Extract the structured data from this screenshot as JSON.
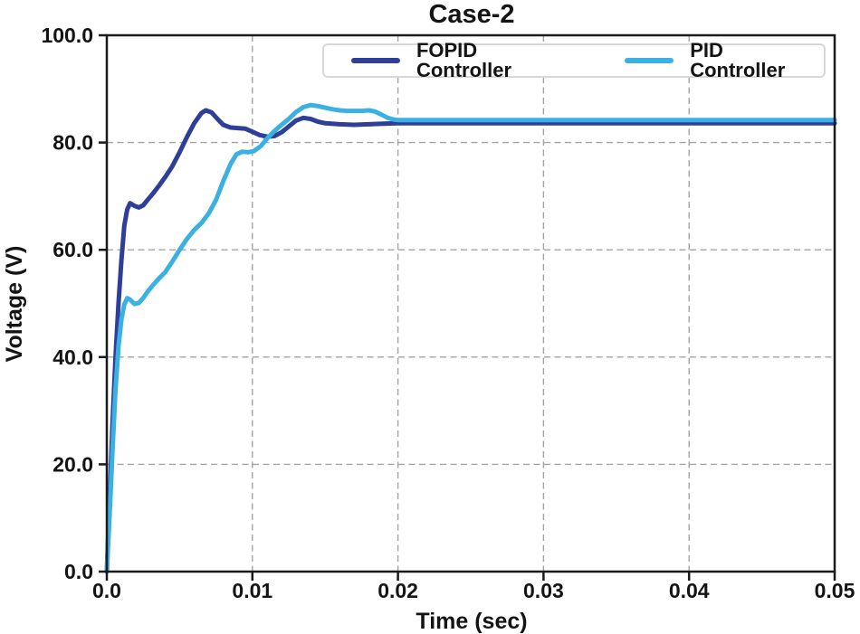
{
  "chart_data": {
    "type": "line",
    "title": "Case-2",
    "xlabel": "Time (sec)",
    "ylabel": "Voltage (V)",
    "xlim": [
      0,
      0.05
    ],
    "ylim": [
      0,
      100
    ],
    "xticks": [
      0,
      0.01,
      0.02,
      0.03,
      0.04,
      0.05
    ],
    "xtick_labels": [
      "0.0",
      "0.01",
      "0.02",
      "0.03",
      "0.04",
      "0.05"
    ],
    "yticks": [
      0,
      20,
      40,
      60,
      80,
      100
    ],
    "ytick_labels": [
      "0.0",
      "20.0",
      "40.0",
      "60.0",
      "80.0",
      "100.0"
    ],
    "grid": true,
    "grid_style": "dashed",
    "grid_color": "#a3a3a3",
    "frame_color": "#1a1a1a",
    "legend_position": "upper center",
    "series": [
      {
        "name": "FOPID Controller",
        "color": "#2e3e99",
        "points": [
          [
            0,
            0
          ],
          [
            0.0002,
            14
          ],
          [
            0.0004,
            28
          ],
          [
            0.0006,
            40
          ],
          [
            0.0008,
            50
          ],
          [
            0.001,
            58
          ],
          [
            0.0012,
            64.5
          ],
          [
            0.0014,
            67.5
          ],
          [
            0.0016,
            68.7
          ],
          [
            0.0019,
            68.2
          ],
          [
            0.0022,
            67.9
          ],
          [
            0.0025,
            68.3
          ],
          [
            0.0028,
            69.3
          ],
          [
            0.0032,
            70.6
          ],
          [
            0.0036,
            72
          ],
          [
            0.004,
            73.5
          ],
          [
            0.0045,
            75.6
          ],
          [
            0.005,
            78.2
          ],
          [
            0.0055,
            81
          ],
          [
            0.006,
            83.6
          ],
          [
            0.0065,
            85.5
          ],
          [
            0.0068,
            86
          ],
          [
            0.0072,
            85.6
          ],
          [
            0.0076,
            84.4
          ],
          [
            0.008,
            83.3
          ],
          [
            0.0085,
            82.8
          ],
          [
            0.009,
            82.7
          ],
          [
            0.0095,
            82.6
          ],
          [
            0.01,
            82
          ],
          [
            0.0105,
            81.4
          ],
          [
            0.011,
            81.1
          ],
          [
            0.0115,
            81.2
          ],
          [
            0.012,
            81.9
          ],
          [
            0.0125,
            83
          ],
          [
            0.013,
            84.1
          ],
          [
            0.0135,
            84.6
          ],
          [
            0.014,
            84.4
          ],
          [
            0.0145,
            83.9
          ],
          [
            0.015,
            83.6
          ],
          [
            0.016,
            83.4
          ],
          [
            0.017,
            83.3
          ],
          [
            0.018,
            83.4
          ],
          [
            0.019,
            83.5
          ],
          [
            0.02,
            83.6
          ],
          [
            0.025,
            83.6
          ],
          [
            0.03,
            83.6
          ],
          [
            0.035,
            83.6
          ],
          [
            0.04,
            83.6
          ],
          [
            0.045,
            83.6
          ],
          [
            0.05,
            83.6
          ]
        ]
      },
      {
        "name": "PID Controller",
        "color": "#3bb1e3",
        "points": [
          [
            0,
            0
          ],
          [
            0.0002,
            11
          ],
          [
            0.0004,
            23
          ],
          [
            0.0006,
            34
          ],
          [
            0.0008,
            42
          ],
          [
            0.001,
            47
          ],
          [
            0.0012,
            49.8
          ],
          [
            0.0014,
            51
          ],
          [
            0.0016,
            50.7
          ],
          [
            0.0019,
            49.9
          ],
          [
            0.0022,
            50.1
          ],
          [
            0.0025,
            51
          ],
          [
            0.0028,
            52.2
          ],
          [
            0.0032,
            53.5
          ],
          [
            0.0036,
            54.7
          ],
          [
            0.004,
            55.8
          ],
          [
            0.0045,
            57.8
          ],
          [
            0.005,
            60
          ],
          [
            0.0055,
            62
          ],
          [
            0.006,
            63.7
          ],
          [
            0.0065,
            65
          ],
          [
            0.007,
            66.8
          ],
          [
            0.0075,
            69.3
          ],
          [
            0.008,
            72.8
          ],
          [
            0.0085,
            76
          ],
          [
            0.0089,
            77.8
          ],
          [
            0.0093,
            78.3
          ],
          [
            0.0097,
            78.2
          ],
          [
            0.0101,
            78.4
          ],
          [
            0.0106,
            79.4
          ],
          [
            0.011,
            80.7
          ],
          [
            0.0115,
            82.1
          ],
          [
            0.012,
            83.3
          ],
          [
            0.0125,
            84.4
          ],
          [
            0.013,
            85.7
          ],
          [
            0.0135,
            86.6
          ],
          [
            0.014,
            87
          ],
          [
            0.0145,
            86.8
          ],
          [
            0.015,
            86.5
          ],
          [
            0.0155,
            86.2
          ],
          [
            0.016,
            86
          ],
          [
            0.0165,
            85.9
          ],
          [
            0.017,
            85.9
          ],
          [
            0.0175,
            85.9
          ],
          [
            0.018,
            86
          ],
          [
            0.0184,
            85.8
          ],
          [
            0.0188,
            85.3
          ],
          [
            0.0193,
            84.6
          ],
          [
            0.0197,
            84.3
          ],
          [
            0.02,
            84.2
          ],
          [
            0.025,
            84.2
          ],
          [
            0.03,
            84.2
          ],
          [
            0.035,
            84.2
          ],
          [
            0.04,
            84.2
          ],
          [
            0.045,
            84.2
          ],
          [
            0.05,
            84.2
          ]
        ]
      }
    ]
  },
  "legend": {
    "items": [
      {
        "label": "FOPID Controller",
        "color": "#2e3e99"
      },
      {
        "label": "PID Controller",
        "color": "#3bb1e3"
      }
    ]
  }
}
